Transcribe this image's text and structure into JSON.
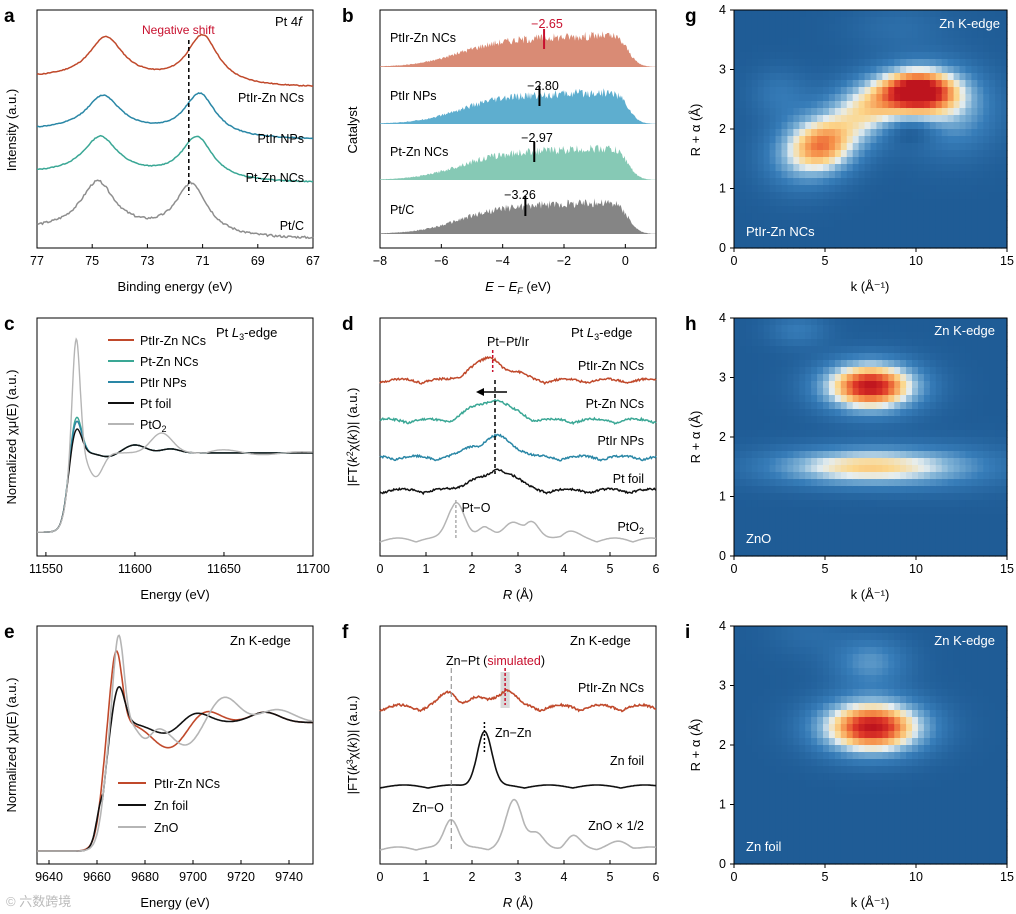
{
  "colors": {
    "ptirzn": "#c0492b",
    "ptir": "#2a87a6",
    "ptzn": "#3aa795",
    "ptc": "#8e8e8e",
    "ptfoil": "#111111",
    "pto2": "#b5b5b5",
    "red": "#c8102e",
    "b_ptirzn": "#d98b75",
    "b_ptir": "#5eaecf",
    "b_ptzn": "#86c9b5",
    "b_ptc": "#858585",
    "wt_bg": "#1f5c96"
  },
  "panels": {
    "a": {
      "label": "a",
      "title_text": "Pt 4",
      "title_italic": "f",
      "annotation": "Negative shift",
      "xlabel": "Binding energy (eV)",
      "ylabel": "Intensity (a.u.)",
      "xticks": [
        "77",
        "75",
        "73",
        "71",
        "69",
        "67"
      ],
      "series_labels": [
        "PtIr-Zn NCs",
        "PtIr NPs",
        "Pt-Zn NCs",
        "Pt/C"
      ]
    },
    "b": {
      "label": "b",
      "ylabel": "Catalyst",
      "xlabel_main": "E − E",
      "xlabel_sub": "F",
      "xlabel_unit": " (eV)",
      "xticks": [
        "−8",
        "−6",
        "−4",
        "−2",
        "0"
      ],
      "series_labels": [
        "PtIr-Zn NCs",
        "PtIr NPs",
        "Pt-Zn NCs",
        "Pt/C"
      ],
      "center_labels": [
        "−2.65",
        "−2.80",
        "−2.97",
        "−3.26"
      ]
    },
    "c": {
      "label": "c",
      "title_main": "Pt ",
      "title_it": "L",
      "title_sub": "3",
      "title_end": "-edge",
      "xlabel": "Energy (eV)",
      "ylabel": "Normalized χμ(E) (a.u.)",
      "xticks": [
        "11550",
        "11600",
        "11650",
        "11700"
      ],
      "legend": [
        "PtIr-Zn NCs",
        "Pt-Zn NCs",
        "PtIr NPs",
        "Pt foil",
        "PtO"
      ],
      "legend_sub": "2"
    },
    "d": {
      "label": "d",
      "title_main": "Pt ",
      "title_it": "L",
      "title_sub": "3",
      "title_end": "-edge",
      "xlabel": "R (Å)",
      "ylabel": "|FT(k²χ(k))| (a.u.)",
      "xticks": [
        "0",
        "1",
        "2",
        "3",
        "4",
        "5",
        "6"
      ],
      "ann_ptpt": "Pt−Pt/Ir",
      "ann_pto": "Pt−O",
      "series_labels": [
        "PtIr-Zn NCs",
        "Pt-Zn NCs",
        "PtIr NPs",
        "Pt foil",
        "PtO"
      ],
      "series_sub": "2"
    },
    "e": {
      "label": "e",
      "title": "Zn K-edge",
      "xlabel": "Energy (eV)",
      "ylabel": "Normalized χμ(E) (a.u.)",
      "xticks": [
        "9640",
        "9660",
        "9680",
        "9700",
        "9720",
        "9740"
      ],
      "legend": [
        "PtIr-Zn NCs",
        "Zn foil",
        "ZnO"
      ]
    },
    "f": {
      "label": "f",
      "title": "Zn K-edge",
      "xlabel": "R (Å)",
      "ylabel": "|FT(k³χ(k))| (a.u.)",
      "xticks": [
        "0",
        "1",
        "2",
        "3",
        "4",
        "5",
        "6"
      ],
      "ann_znpt": "Zn−Pt (",
      "ann_sim": "simulated",
      "ann_close": ")",
      "ann_znzn": "Zn−Zn",
      "ann_zno": "Zn−O",
      "series_labels": [
        "PtIr-Zn NCs",
        "Zn foil",
        "ZnO × 1/2"
      ]
    },
    "g": {
      "label": "g",
      "title": "Zn K-edge",
      "sample": "PtIr-Zn NCs"
    },
    "h": {
      "label": "h",
      "title": "Zn K-edge",
      "sample": "ZnO"
    },
    "i": {
      "label": "i",
      "title": "Zn K-edge",
      "sample": "Zn foil"
    },
    "wt_axes": {
      "xticks": [
        "0",
        "5",
        "10",
        "15"
      ],
      "yticks": [
        "0",
        "1",
        "2",
        "3",
        "4"
      ],
      "xlabel": "k (Å⁻¹)",
      "ylabel": "R + α (Å)"
    }
  },
  "watermark": "© 六数跨境",
  "chart_data": [
    {
      "panel": "a",
      "type": "line",
      "title": "Pt 4f",
      "xlabel": "Binding energy (eV)",
      "ylabel": "Intensity (a.u.)",
      "xlim": [
        77,
        67
      ],
      "ylim": [
        0,
        5.5
      ],
      "annotations": [
        {
          "text": "Negative shift",
          "x": 71.5
        }
      ],
      "series": [
        {
          "name": "PtIr-Zn NCs",
          "color": "ptirzn",
          "offset": 3.7,
          "p1": 74.5,
          "p2": 71.0,
          "h1": 0.95,
          "h2": 1.15
        },
        {
          "name": "PtIr NPs",
          "color": "ptir",
          "offset": 2.5,
          "p1": 74.6,
          "p2": 71.1,
          "h1": 0.8,
          "h2": 1.0
        },
        {
          "name": "Pt-Zn NCs",
          "color": "ptzn",
          "offset": 1.5,
          "p1": 74.7,
          "p2": 71.2,
          "h1": 0.85,
          "h2": 1.0
        },
        {
          "name": "Pt/C",
          "color": "ptc",
          "offset": 0.2,
          "p1": 74.8,
          "p2": 71.4,
          "h1": 1.1,
          "h2": 1.2
        }
      ]
    },
    {
      "panel": "b",
      "type": "area",
      "ylabel": "Catalyst",
      "xlabel": "E − EF (eV)",
      "xlim": [
        -8,
        1
      ],
      "series": [
        {
          "name": "PtIr-Zn NCs",
          "d_band_center": -2.65,
          "color": "b_ptirzn"
        },
        {
          "name": "PtIr NPs",
          "d_band_center": -2.8,
          "color": "b_ptir"
        },
        {
          "name": "Pt-Zn NCs",
          "d_band_center": -2.97,
          "color": "b_ptzn"
        },
        {
          "name": "Pt/C",
          "d_band_center": -3.26,
          "color": "b_ptc"
        }
      ]
    },
    {
      "panel": "c",
      "type": "line",
      "title": "Pt L3-edge",
      "xlabel": "Energy (eV)",
      "ylabel": "Normalized χμ(E) (a.u.)",
      "xlim": [
        11545,
        11700
      ],
      "ylim": [
        -0.3,
        2.7
      ],
      "series": [
        {
          "name": "PtIr-Zn NCs",
          "color": "ptirzn",
          "e0": 11562,
          "wl": 11567,
          "wl_height": 1.45
        },
        {
          "name": "Pt-Zn NCs",
          "color": "ptzn",
          "e0": 11562,
          "wl": 11567,
          "wl_height": 1.5
        },
        {
          "name": "PtIr NPs",
          "color": "ptir",
          "e0": 11562,
          "wl": 11567,
          "wl_height": 1.45
        },
        {
          "name": "Pt foil",
          "color": "ptfoil",
          "e0": 11562,
          "wl": 11567,
          "wl_height": 1.35
        },
        {
          "name": "PtO2",
          "color": "pto2",
          "e0": 11562,
          "wl": 11567,
          "wl_height": 2.45
        }
      ]
    },
    {
      "panel": "d",
      "type": "line",
      "title": "Pt L3-edge",
      "xlabel": "R (Å)",
      "ylabel": "|FT(k²χ(k))| (a.u.)",
      "xlim": [
        0,
        6
      ],
      "annotations": [
        {
          "text": "Pt−Pt/Ir",
          "x": 2.5
        },
        {
          "text": "Pt−O",
          "x": 1.65
        }
      ],
      "series": [
        {
          "name": "PtIr-Zn NCs",
          "color": "ptirzn",
          "main_peak": 2.45
        },
        {
          "name": "Pt-Zn NCs",
          "color": "ptzn",
          "main_peak": 2.5
        },
        {
          "name": "PtIr NPs",
          "color": "ptir",
          "main_peak": 2.55
        },
        {
          "name": "Pt foil",
          "color": "ptfoil",
          "main_peak": 2.6
        },
        {
          "name": "PtO2",
          "color": "pto2",
          "main_peak": 1.65
        }
      ]
    },
    {
      "panel": "e",
      "type": "line",
      "title": "Zn K-edge",
      "xlabel": "Energy (eV)",
      "ylabel": "Normalized χμ(E) (a.u.)",
      "xlim": [
        9635,
        9750
      ],
      "ylim": [
        -0.1,
        1.75
      ],
      "series": [
        {
          "name": "PtIr-Zn NCs",
          "color": "ptirzn",
          "peak_e": 9668,
          "peak": 1.55
        },
        {
          "name": "Zn foil",
          "color": "ptfoil",
          "peak_e": 9669,
          "peak": 1.28
        },
        {
          "name": "ZnO",
          "color": "pto2",
          "peak_e": 9669,
          "peak": 1.68
        }
      ]
    },
    {
      "panel": "f",
      "type": "line",
      "title": "Zn K-edge",
      "xlabel": "R (Å)",
      "ylabel": "|FT(k³χ(k))| (a.u.)",
      "xlim": [
        0,
        6
      ],
      "annotations": [
        {
          "text": "Zn−Pt (simulated)",
          "x": 2.72
        },
        {
          "text": "Zn−Zn",
          "x": 2.27
        },
        {
          "text": "Zn−O",
          "x": 1.55
        }
      ],
      "series": [
        {
          "name": "PtIr-Zn NCs",
          "color": "ptirzn",
          "main_peak": 2.72
        },
        {
          "name": "Zn foil",
          "color": "ptfoil",
          "main_peak": 2.27
        },
        {
          "name": "ZnO × 1/2",
          "color": "pto2",
          "main_peak": 2.9
        }
      ]
    },
    {
      "panel": "g",
      "type": "heatmap",
      "title": "Zn K-edge",
      "sample": "PtIr-Zn NCs",
      "xlabel": "k (Å⁻¹)",
      "ylabel": "R + α (Å)",
      "xlim": [
        0,
        15
      ],
      "ylim": [
        0,
        4
      ],
      "maxima": [
        {
          "k": 10,
          "r": 2.65,
          "w": 1
        },
        {
          "k": 5,
          "r": 1.8,
          "w": 0.6
        }
      ]
    },
    {
      "panel": "h",
      "type": "heatmap",
      "title": "Zn K-edge",
      "sample": "ZnO",
      "xlabel": "k (Å⁻¹)",
      "ylabel": "R + α (Å)",
      "xlim": [
        0,
        15
      ],
      "ylim": [
        0,
        4
      ],
      "maxima": [
        {
          "k": 7.5,
          "r": 2.85,
          "w": 1
        },
        {
          "k": 7,
          "r": 1.5,
          "w": 0.6
        }
      ]
    },
    {
      "panel": "i",
      "type": "heatmap",
      "title": "Zn K-edge",
      "sample": "Zn foil",
      "xlabel": "k (Å⁻¹)",
      "ylabel": "R + α (Å)",
      "xlim": [
        0,
        15
      ],
      "ylim": [
        0,
        4
      ],
      "maxima": [
        {
          "k": 7.5,
          "r": 2.3,
          "w": 1
        }
      ]
    }
  ]
}
